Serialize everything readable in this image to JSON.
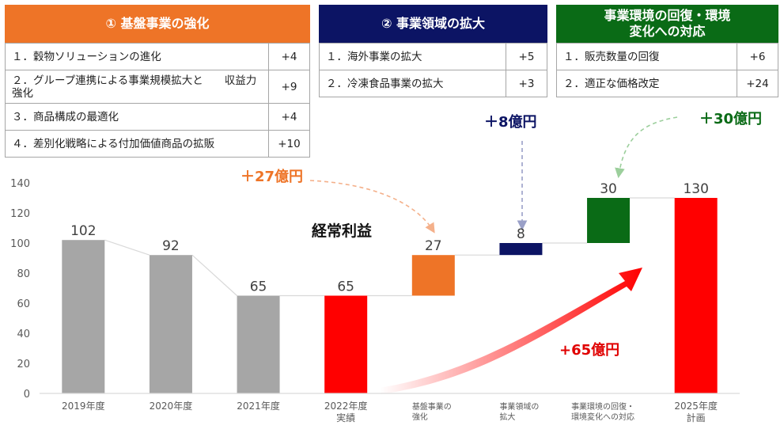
{
  "panels": [
    {
      "title": "① 基盤事業の強化",
      "color": "#ee7427",
      "items": [
        {
          "label": "１．穀物ソリューションの進化",
          "value": "+4"
        },
        {
          "label": "２．グループ連携による事業規模拡大と　　収益力強化",
          "value": "+9"
        },
        {
          "label": "３．商品構成の最適化",
          "value": "+4"
        },
        {
          "label": "４．差別化戦略による付加価値商品の拡販",
          "value": "+10"
        }
      ]
    },
    {
      "title": "② 事業領域の拡大",
      "color": "#0c1464",
      "items": [
        {
          "label": "１．海外事業の拡大",
          "value": "+5"
        },
        {
          "label": "２．冷凍食品事業の拡大",
          "value": "+3"
        }
      ]
    },
    {
      "title": "事業環境の回復・環境変化への対応",
      "color": "#0a6b16",
      "items": [
        {
          "label": "１．販売数量の回復",
          "value": "+6"
        },
        {
          "label": "２．適正な価格改定",
          "value": "+24"
        }
      ]
    }
  ],
  "annotations": {
    "a27": "＋27億円",
    "a8": "＋8億円",
    "a30": "＋30億円",
    "a65": "+65億円"
  },
  "chart_data": {
    "type": "bar",
    "subtype": "waterfall",
    "title": "経常利益",
    "categories": [
      "2019年度",
      "2020年度",
      "2021年度",
      "2022年度\n実績",
      "基盤事業の\n強化",
      "事業領域の\n拡大",
      "事業環境の回復・\n環境変化への対応",
      "2025年度\n計画"
    ],
    "values": [
      102,
      92,
      65,
      65,
      27,
      8,
      30,
      130
    ],
    "bases": [
      0,
      0,
      0,
      0,
      65,
      92,
      100,
      0
    ],
    "labels": [
      "102",
      "92",
      "65",
      "65",
      "27",
      "8",
      "30",
      "130"
    ],
    "colors": [
      "#a6a6a6",
      "#a6a6a6",
      "#a6a6a6",
      "#ff0000",
      "#ee7427",
      "#0c1464",
      "#0a6b16",
      "#ff0000"
    ],
    "yticks": [
      0,
      20,
      40,
      60,
      80,
      100,
      120,
      140
    ],
    "ylim": [
      0,
      140
    ],
    "xlabel": "",
    "ylabel": "",
    "grid": false,
    "legend": "none"
  }
}
